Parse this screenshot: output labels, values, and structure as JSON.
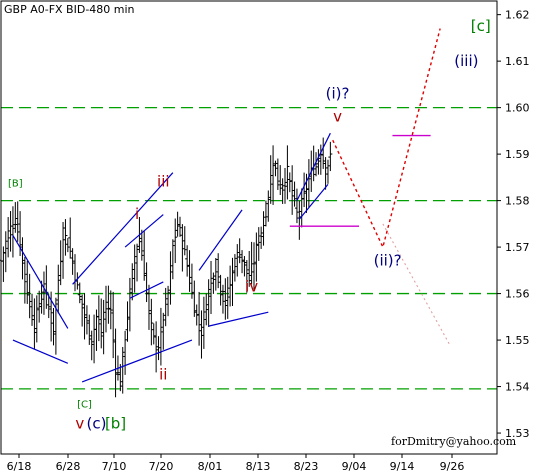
{
  "title": "GBP A0-FX BID-480 min",
  "watermark": "forDmitry@yahoo.com",
  "colors": {
    "background": "#ffffff",
    "bars": "#000000",
    "channel": "#0000cc",
    "support_line": "#00a000",
    "projection": "#e00000",
    "alt_projection": "#e0a0a0",
    "target_marker": "#cc00cc",
    "wave_red": "#b00000",
    "wave_navy": "#000080",
    "wave_green": "#008000"
  },
  "chart_data": {
    "type": "ohlc",
    "title": "GBP A0-FX BID-480 min",
    "x_ticks": [
      "6/18",
      "6/28",
      "7/10",
      "7/20",
      "8/01",
      "8/13",
      "8/23",
      "9/04",
      "9/14",
      "9/26"
    ],
    "y_ticks": [
      "1.62",
      "1.61",
      "1.60",
      "1.59",
      "1.58",
      "1.57",
      "1.56",
      "1.55",
      "1.54",
      "1.53"
    ],
    "ylim": [
      1.527,
      1.621
    ],
    "xlim": [
      0,
      225
    ],
    "grid": true,
    "support_levels": [
      1.6,
      1.58,
      1.56,
      1.5395
    ],
    "close_path": [
      [
        0,
        1.567
      ],
      [
        3,
        1.573
      ],
      [
        6,
        1.576
      ],
      [
        8,
        1.571
      ],
      [
        10,
        1.563
      ],
      [
        12,
        1.558
      ],
      [
        14,
        1.553
      ],
      [
        16,
        1.558
      ],
      [
        18,
        1.561
      ],
      [
        20,
        1.557
      ],
      [
        22,
        1.552
      ],
      [
        24,
        1.563
      ],
      [
        26,
        1.573
      ],
      [
        28,
        1.571
      ],
      [
        30,
        1.567
      ],
      [
        32,
        1.561
      ],
      [
        34,
        1.557
      ],
      [
        36,
        1.553
      ],
      [
        38,
        1.55
      ],
      [
        40,
        1.555
      ],
      [
        42,
        1.551
      ],
      [
        44,
        1.558
      ],
      [
        46,
        1.556
      ],
      [
        48,
        1.544
      ],
      [
        50,
        1.541
      ],
      [
        52,
        1.551
      ],
      [
        54,
        1.56
      ],
      [
        56,
        1.568
      ],
      [
        58,
        1.572
      ],
      [
        60,
        1.565
      ],
      [
        62,
        1.555
      ],
      [
        64,
        1.55
      ],
      [
        66,
        1.548
      ],
      [
        68,
        1.555
      ],
      [
        70,
        1.56
      ],
      [
        72,
        1.57
      ],
      [
        74,
        1.575
      ],
      [
        76,
        1.571
      ],
      [
        78,
        1.566
      ],
      [
        80,
        1.56
      ],
      [
        82,
        1.555
      ],
      [
        84,
        1.552
      ],
      [
        86,
        1.558
      ],
      [
        88,
        1.563
      ],
      [
        90,
        1.566
      ],
      [
        92,
        1.561
      ],
      [
        94,
        1.558
      ],
      [
        96,
        1.562
      ],
      [
        98,
        1.567
      ],
      [
        100,
        1.569
      ],
      [
        102,
        1.566
      ],
      [
        104,
        1.563
      ],
      [
        106,
        1.567
      ],
      [
        108,
        1.572
      ],
      [
        110,
        1.575
      ],
      [
        112,
        1.581
      ],
      [
        114,
        1.589
      ],
      [
        116,
        1.584
      ],
      [
        118,
        1.583
      ],
      [
        120,
        1.586
      ],
      [
        122,
        1.581
      ],
      [
        124,
        1.577
      ],
      [
        126,
        1.579
      ],
      [
        128,
        1.583
      ],
      [
        130,
        1.586
      ],
      [
        132,
        1.588
      ],
      [
        134,
        1.591
      ],
      [
        136,
        1.587
      ],
      [
        138,
        1.589
      ]
    ],
    "projection_path": [
      [
        139,
        1.593
      ],
      [
        160,
        1.57
      ],
      [
        184,
        1.617
      ]
    ],
    "alt_projection_path": [
      [
        160,
        1.575
      ],
      [
        188,
        1.549
      ]
    ],
    "channels": [
      [
        [
          5,
          1.5725
        ],
        [
          28,
          1.5525
        ]
      ],
      [
        [
          5,
          1.55
        ],
        [
          28,
          1.545
        ]
      ],
      [
        [
          30,
          1.562
        ],
        [
          72,
          1.586
        ]
      ],
      [
        [
          34,
          1.541
        ],
        [
          80,
          1.55
        ]
      ],
      [
        [
          52,
          1.57
        ],
        [
          68,
          1.577
        ]
      ],
      [
        [
          54,
          1.559
        ],
        [
          68,
          1.5625
        ]
      ],
      [
        [
          83,
          1.565
        ],
        [
          101,
          1.578
        ]
      ],
      [
        [
          87,
          1.553
        ],
        [
          112,
          1.556
        ]
      ],
      [
        [
          124,
          1.58
        ],
        [
          138,
          1.5945
        ]
      ],
      [
        [
          125,
          1.576
        ],
        [
          137,
          1.5835
        ]
      ]
    ],
    "target_levels": [
      [
        [
          121,
          1.5745
        ],
        [
          150,
          1.5745
        ]
      ],
      [
        [
          164,
          1.594
        ],
        [
          180,
          1.594
        ]
      ]
    ],
    "wave_labels": [
      {
        "text": "[c]",
        "x": 201,
        "y": 1.6165,
        "color": "green"
      },
      {
        "text": "(iii)",
        "x": 195,
        "y": 1.609,
        "color": "navy"
      },
      {
        "text": "(i)?",
        "x": 141,
        "y": 1.602,
        "color": "navy"
      },
      {
        "text": "v",
        "x": 141,
        "y": 1.597,
        "color": "red"
      },
      {
        "text": "iii",
        "x": 68,
        "y": 1.583,
        "color": "red"
      },
      {
        "text": "[B]",
        "x": 6,
        "y": 1.583,
        "color": "green"
      },
      {
        "text": "i",
        "x": 57,
        "y": 1.576,
        "color": "red"
      },
      {
        "text": "iv",
        "x": 105,
        "y": 1.5605,
        "color": "red"
      },
      {
        "text": "(ii)?",
        "x": 162,
        "y": 1.566,
        "color": "navy"
      },
      {
        "text": "ii",
        "x": 68,
        "y": 1.5415,
        "color": "red"
      },
      {
        "text": "[C]",
        "x": 35,
        "y": 1.5355,
        "color": "green"
      },
      {
        "text": "v",
        "x": 33,
        "y": 1.531,
        "color": "red"
      },
      {
        "text": "(c)",
        "x": 40,
        "y": 1.531,
        "color": "navy"
      },
      {
        "text": "[b]",
        "x": 48,
        "y": 1.531,
        "color": "green"
      }
    ]
  }
}
